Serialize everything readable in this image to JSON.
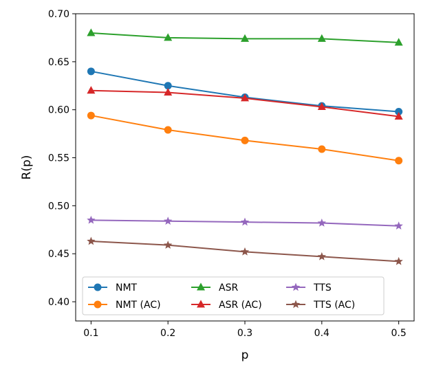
{
  "chart_data": {
    "type": "line",
    "xlabel": "p",
    "ylabel": "R(p)",
    "x": [
      0.1,
      0.2,
      0.3,
      0.4,
      0.5
    ],
    "x_ticks": [
      "0.1",
      "0.2",
      "0.3",
      "0.4",
      "0.5"
    ],
    "y_ticks": [
      "0.40",
      "0.45",
      "0.50",
      "0.55",
      "0.60",
      "0.65",
      "0.70"
    ],
    "xlim": [
      0.08,
      0.52
    ],
    "ylim": [
      0.38,
      0.7
    ],
    "grid": false,
    "legend_position": "lower center",
    "series": [
      {
        "name": "NMT",
        "color": "#1f77b4",
        "marker": "circle",
        "values": [
          0.64,
          0.625,
          0.613,
          0.604,
          0.598
        ]
      },
      {
        "name": "NMT (AC)",
        "color": "#ff7f0e",
        "marker": "circle",
        "values": [
          0.594,
          0.579,
          0.568,
          0.559,
          0.547
        ]
      },
      {
        "name": "ASR",
        "color": "#2ca02c",
        "marker": "triangle",
        "values": [
          0.68,
          0.675,
          0.674,
          0.674,
          0.67
        ]
      },
      {
        "name": "ASR (AC)",
        "color": "#d62728",
        "marker": "triangle",
        "values": [
          0.62,
          0.618,
          0.612,
          0.603,
          0.593
        ]
      },
      {
        "name": "TTS",
        "color": "#9467bd",
        "marker": "star",
        "values": [
          0.485,
          0.484,
          0.483,
          0.482,
          0.479
        ]
      },
      {
        "name": "TTS (AC)",
        "color": "#8c564b",
        "marker": "star",
        "values": [
          0.463,
          0.459,
          0.452,
          0.447,
          0.442
        ]
      }
    ]
  }
}
